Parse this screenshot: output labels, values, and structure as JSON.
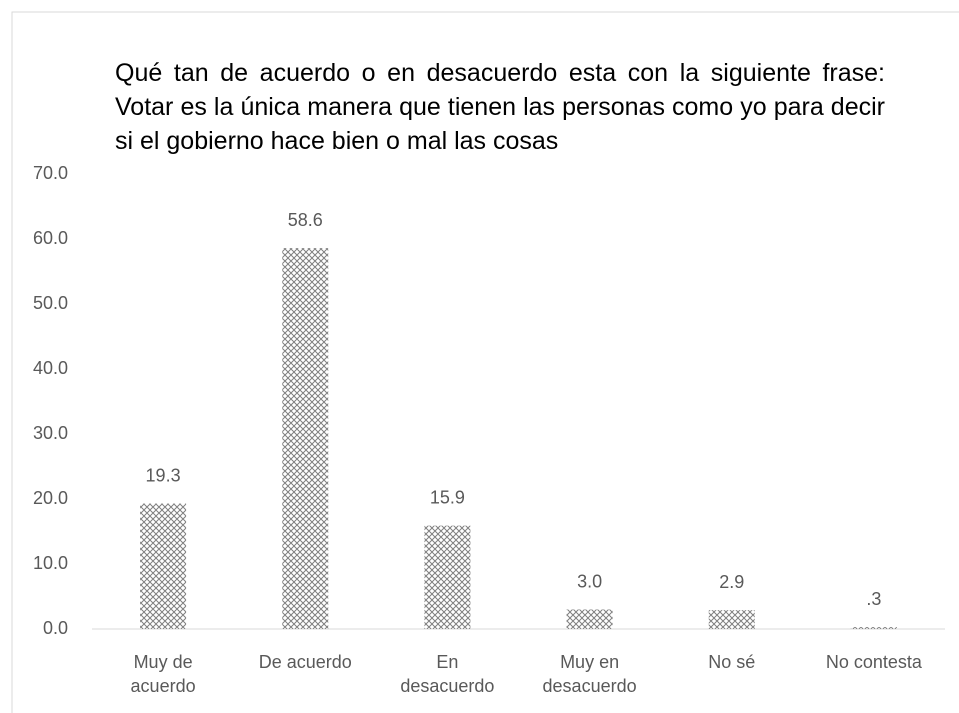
{
  "chart_data": {
    "type": "bar",
    "title": "Qué tan de acuerdo o en desacuerdo esta con la siguiente frase:  Votar es la única manera que tienen las personas como yo para decir si el gobierno hace bien o mal las cosas",
    "categories": [
      "Muy de acuerdo",
      "De acuerdo",
      "En desacuerdo",
      "Muy en desacuerdo",
      "No sé",
      "No contesta"
    ],
    "values": [
      19.3,
      58.6,
      15.9,
      3.0,
      2.9,
      0.3
    ],
    "value_labels": [
      "19.3",
      "58.6",
      "15.9",
      "3.0",
      "2.9",
      ".3"
    ],
    "color": "#7f7f7f",
    "ylim": [
      0,
      70
    ],
    "yticks": [
      {
        "value": 0,
        "label": "0.0"
      },
      {
        "value": 10,
        "label": "10.0"
      },
      {
        "value": 20,
        "label": "20.0"
      },
      {
        "value": 30,
        "label": "30.0"
      },
      {
        "value": 40,
        "label": "40.0"
      },
      {
        "value": 50,
        "label": "50.0"
      },
      {
        "value": 60,
        "label": "60.0"
      },
      {
        "value": 70,
        "label": "70.0"
      }
    ],
    "grid": false
  }
}
